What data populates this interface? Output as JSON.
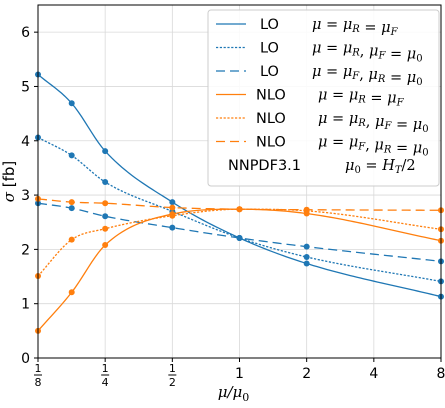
{
  "chart_data": {
    "type": "line",
    "xscale": "log2",
    "xlim": [
      0.125,
      8
    ],
    "ylim": [
      0,
      6.5
    ],
    "grid": true,
    "legend_position": "top-right",
    "xlabel": "μ/μ0",
    "ylabel": "σ [fb]",
    "x_ticks": [
      {
        "value": 0.125,
        "num": "1",
        "den": "8"
      },
      {
        "value": 0.25,
        "num": "1",
        "den": "4"
      },
      {
        "value": 0.5,
        "num": "1",
        "den": "2"
      },
      {
        "value": 1,
        "label": "1"
      },
      {
        "value": 2,
        "label": "2"
      },
      {
        "value": 4,
        "label": "4"
      },
      {
        "value": 8,
        "label": "8"
      }
    ],
    "y_ticks": [
      0,
      1,
      2,
      3,
      4,
      5,
      6
    ],
    "point_x": [
      0.125,
      0.25,
      0.5,
      1,
      2,
      8,
      0.177,
      0.354,
      0.707,
      1.414,
      2.83,
      5.66
    ],
    "marker_x": [
      0.125,
      0.177,
      0.25,
      0.5,
      1,
      2,
      8
    ],
    "series": [
      {
        "name": "LO",
        "order": "LO",
        "color": "#1f77b4",
        "dash": "solid",
        "x": [
          0.125,
          0.177,
          0.25,
          0.5,
          1,
          2,
          8
        ],
        "values": [
          5.22,
          4.69,
          3.81,
          2.87,
          2.21,
          1.74,
          1.13
        ]
      },
      {
        "name": "LO",
        "order": "LO",
        "color": "#1f77b4",
        "dash": "dotted",
        "x": [
          0.125,
          0.177,
          0.25,
          0.5,
          1,
          2,
          8
        ],
        "values": [
          4.06,
          3.73,
          3.24,
          2.7,
          2.21,
          1.86,
          1.41
        ]
      },
      {
        "name": "LO",
        "order": "LO",
        "color": "#1f77b4",
        "dash": "dashed",
        "x": [
          0.125,
          0.177,
          0.25,
          0.5,
          1,
          2,
          8
        ],
        "values": [
          2.85,
          2.76,
          2.61,
          2.4,
          2.21,
          2.05,
          1.78
        ]
      },
      {
        "name": "NLO",
        "order": "NLO",
        "color": "#ff7f0e",
        "dash": "solid",
        "x": [
          0.125,
          0.177,
          0.25,
          0.5,
          1,
          2,
          8
        ],
        "values": [
          0.5,
          1.21,
          2.08,
          2.65,
          2.74,
          2.66,
          2.16
        ]
      },
      {
        "name": "NLO",
        "order": "NLO",
        "color": "#ff7f0e",
        "dash": "dotted",
        "x": [
          0.125,
          0.177,
          0.25,
          0.5,
          1,
          2,
          8
        ],
        "values": [
          1.51,
          2.18,
          2.38,
          2.62,
          2.74,
          2.71,
          2.37
        ]
      },
      {
        "name": "NLO",
        "order": "NLO",
        "color": "#ff7f0e",
        "dash": "dashed",
        "x": [
          0.125,
          0.177,
          0.25,
          0.5,
          1,
          2,
          8
        ],
        "values": [
          2.93,
          2.87,
          2.85,
          2.77,
          2.74,
          2.73,
          2.72
        ]
      }
    ],
    "legend": [
      {
        "order": "LO",
        "scale": "μ = μR = μF"
      },
      {
        "order": "LO",
        "scale": "μ = μR, μF = μ0"
      },
      {
        "order": "LO",
        "scale": "μ = μF, μR = μ0"
      },
      {
        "order": "NLO",
        "scale": "μ = μR = μF"
      },
      {
        "order": "NLO",
        "scale": "μ = μR, μF = μ0"
      },
      {
        "order": "NLO",
        "scale": "μ = μF, μR = μ0"
      }
    ],
    "pdf_label": "NNPDF3.1",
    "central_scale": "μ0 = HT/2"
  }
}
